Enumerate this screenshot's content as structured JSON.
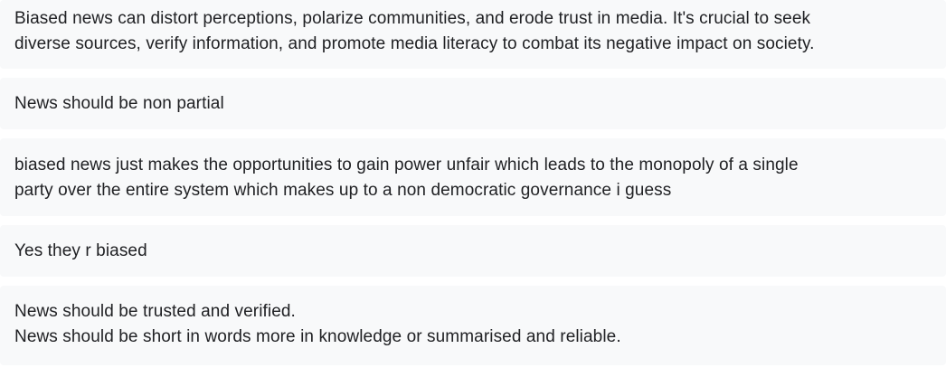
{
  "responses": [
    {
      "lines": [
        "Biased news can distort perceptions, polarize communities, and erode trust in media. It's crucial to seek",
        "diverse sources, verify information, and promote media literacy to combat its negative impact on society."
      ]
    },
    {
      "lines": [
        "News should be non partial"
      ]
    },
    {
      "lines": [
        "biased news just makes the opportunities to gain power unfair which leads to the monopoly of a single",
        "party over the entire system which makes up to a non democratic governance i guess"
      ]
    },
    {
      "lines": [
        "Yes they r biased"
      ]
    },
    {
      "lines": [
        "News should be trusted and verified.",
        "News should be short in words more in knowledge or summarised and reliable."
      ]
    }
  ],
  "colors": {
    "card_background": "#f8f9fa",
    "text": "#202124",
    "page_background": "#ffffff"
  }
}
